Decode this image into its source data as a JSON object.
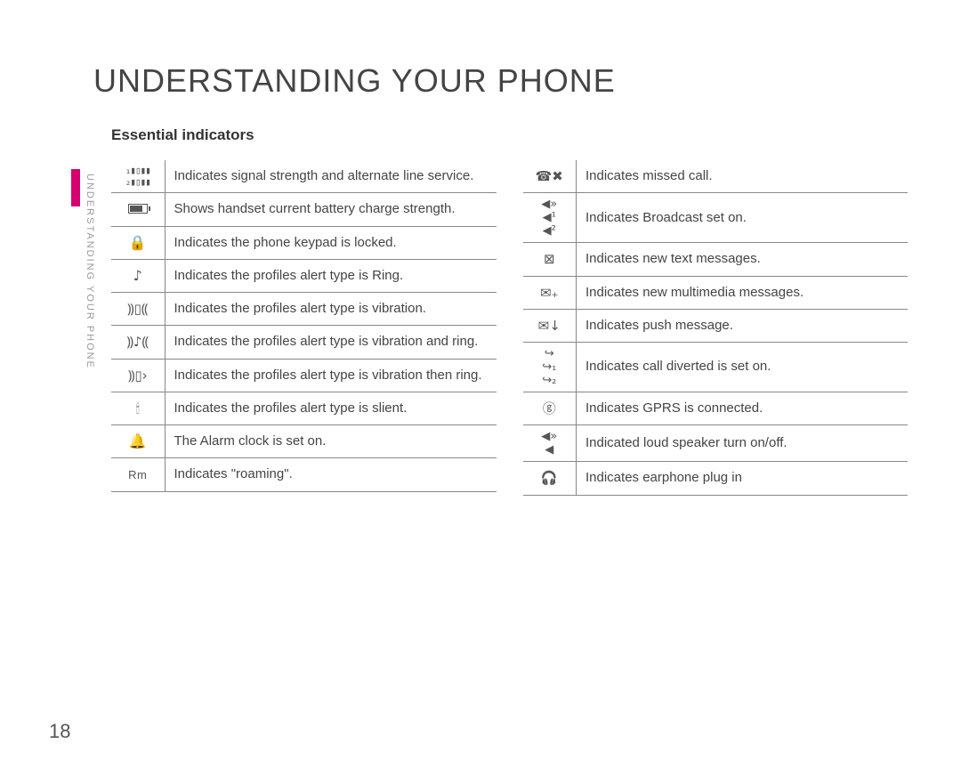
{
  "title": "UNDERSTANDING YOUR PHONE",
  "subtitle": "Essential indicators",
  "side_label": "UNDERSTANDING YOUR PHONE",
  "page_number": "18",
  "colors": {
    "accent": "#d6006f",
    "text": "#444444",
    "border": "#888888",
    "side_label": "#999999",
    "background": "#ffffff"
  },
  "font_sizes": {
    "title": 36,
    "subtitle": 17,
    "body": 15,
    "side_label": 11,
    "page_number": 22
  },
  "left_table": [
    {
      "icon_name": "signal-alternate-icon",
      "desc": "Indicates signal strength and alternate line service."
    },
    {
      "icon_name": "battery-icon",
      "desc": "Shows handset current battery charge strength."
    },
    {
      "icon_name": "lock-icon",
      "desc": "Indicates the phone keypad is locked."
    },
    {
      "icon_name": "ring-icon",
      "desc": "Indicates the profiles alert type is Ring."
    },
    {
      "icon_name": "vibration-icon",
      "desc": "Indicates the profiles alert type is vibration."
    },
    {
      "icon_name": "vibration-ring-icon",
      "desc": "Indicates the profiles alert type is vibration and ring."
    },
    {
      "icon_name": "vibration-then-ring-icon",
      "desc": "Indicates the profiles alert type is vibration then ring."
    },
    {
      "icon_name": "silent-icon",
      "desc": "Indicates the profiles alert type is slient."
    },
    {
      "icon_name": "alarm-icon",
      "desc": "The Alarm clock is set on."
    },
    {
      "icon_name": "roaming-icon",
      "desc": "Indicates \"roaming\"."
    }
  ],
  "right_table": [
    {
      "icon_name": "missed-call-icon",
      "desc": "Indicates missed call."
    },
    {
      "icon_name": "broadcast-icon",
      "desc": "Indicates Broadcast set on."
    },
    {
      "icon_name": "new-text-icon",
      "desc": "Indicates new text messages."
    },
    {
      "icon_name": "new-mms-icon",
      "desc": "Indicates new multimedia messages."
    },
    {
      "icon_name": "push-message-icon",
      "desc": "Indicates push message."
    },
    {
      "icon_name": "call-divert-icon",
      "desc": "Indicates call diverted is set on."
    },
    {
      "icon_name": "gprs-icon",
      "desc": "Indicates GPRS is connected."
    },
    {
      "icon_name": "loudspeaker-icon",
      "desc": "Indicated loud speaker turn on/off."
    },
    {
      "icon_name": "earphone-icon",
      "desc": "Indicates earphone plug in"
    }
  ]
}
